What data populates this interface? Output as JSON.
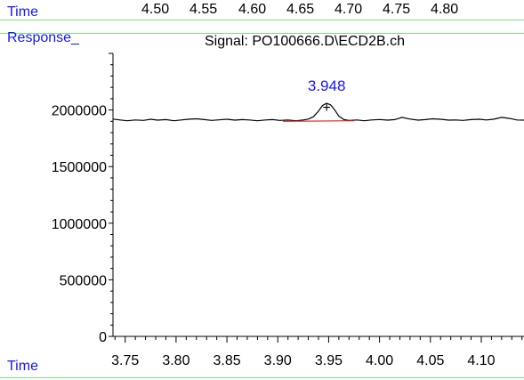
{
  "header": {
    "top_axis_label": "Time",
    "top_ticks": [
      "4.50",
      "4.55",
      "4.60",
      "4.65",
      "4.70",
      "4.75",
      "4.80"
    ],
    "y_axis_label": "Response_",
    "signal_title": "Signal: PO100666.D\\ECD2B.ch",
    "bottom_axis_label": "Time"
  },
  "colors": {
    "label_blue": "#1414ff",
    "guide_green": "#7fe07f",
    "trace": "#000000",
    "baseline": "#e02020",
    "axis": "#000000"
  },
  "chart_data": {
    "type": "line",
    "title": "Signal: PO100666.D\\ECD2B.ch",
    "xlabel": "Time",
    "ylabel": "Response_",
    "xlim": [
      3.738,
      4.142
    ],
    "ylim": [
      0,
      2500000
    ],
    "xticks": [
      3.75,
      3.8,
      3.85,
      3.9,
      3.95,
      4.0,
      4.05,
      4.1
    ],
    "yticks": [
      0,
      500000,
      1000000,
      1500000,
      2000000
    ],
    "grid": false,
    "series": [
      {
        "x": [
          3.738,
          3.745,
          3.752,
          3.76,
          3.768,
          3.775,
          3.782,
          3.79,
          3.798,
          3.805,
          3.812,
          3.82,
          3.828,
          3.835,
          3.842,
          3.85,
          3.858,
          3.865,
          3.872,
          3.88,
          3.888,
          3.895,
          3.902,
          3.91,
          3.918,
          3.925,
          3.93,
          3.935,
          3.94,
          3.944,
          3.948,
          3.952,
          3.956,
          3.96,
          3.965,
          3.97,
          3.978,
          3.985,
          3.992,
          4.0,
          4.008,
          4.015,
          4.022,
          4.03,
          4.038,
          4.045,
          4.052,
          4.06,
          4.068,
          4.075,
          4.082,
          4.09,
          4.098,
          4.105,
          4.112,
          4.12,
          4.128,
          4.135,
          4.142
        ],
        "y": [
          1920000,
          1912000,
          1905000,
          1912000,
          1908000,
          1918000,
          1910000,
          1915000,
          1905000,
          1912000,
          1918000,
          1922000,
          1915000,
          1908000,
          1913000,
          1918000,
          1910000,
          1915000,
          1912000,
          1905000,
          1912000,
          1915000,
          1908000,
          1912000,
          1905000,
          1912000,
          1920000,
          1940000,
          1990000,
          2040000,
          2060000,
          2045000,
          2000000,
          1945000,
          1915000,
          1908000,
          1912000,
          1905000,
          1912000,
          1916000,
          1910000,
          1915000,
          1935000,
          1920000,
          1910000,
          1915000,
          1922000,
          1918000,
          1910000,
          1912000,
          1908000,
          1915000,
          1918000,
          1912000,
          1918000,
          1935000,
          1925000,
          1912000,
          1910000
        ]
      }
    ],
    "annotations": [
      {
        "label": "3.948",
        "x": 3.948,
        "y": 2060000,
        "marker": "+"
      }
    ],
    "baseline": {
      "x": [
        3.905,
        3.975
      ],
      "y": [
        1900000,
        1905000
      ]
    }
  }
}
